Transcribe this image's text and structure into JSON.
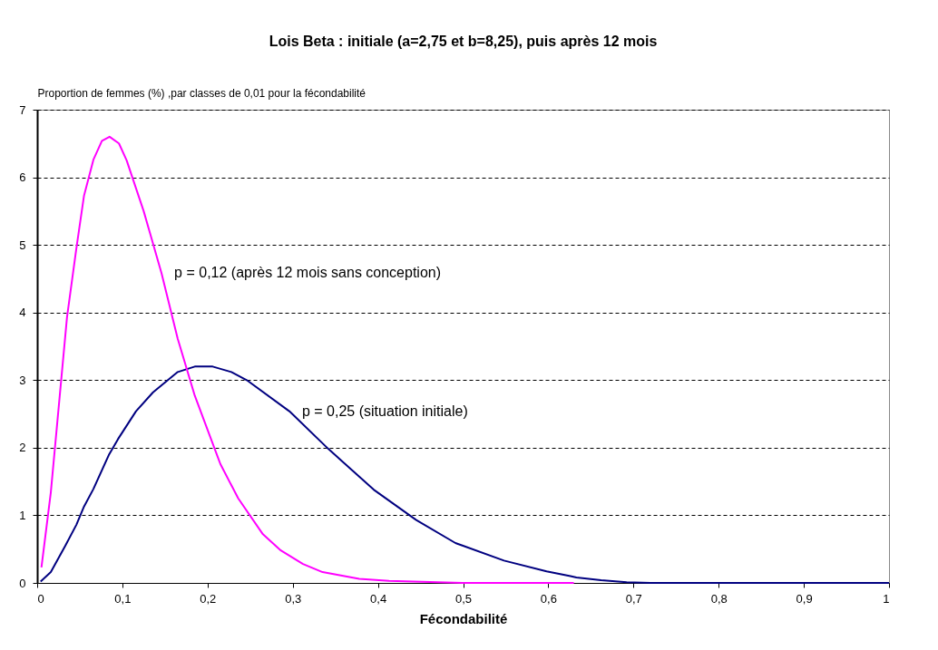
{
  "chart_data": {
    "type": "line",
    "title": "Lois Beta : initiale (a=2,75 et b=8,25), puis après 12 mois",
    "ylabel": "Proportion de  femmes (%) ,par classes de 0,01 pour la fécondabilité",
    "xlabel": "Fécondabilité",
    "series": [
      {
        "name": "p = 0,12 (après 12 mois sans conception)",
        "color": "#ff00ff",
        "x": [
          0.005,
          0.016,
          0.035,
          0.046,
          0.055,
          0.066,
          0.076,
          0.085,
          0.096,
          0.105,
          0.125,
          0.146,
          0.165,
          0.185,
          0.215,
          0.236,
          0.265,
          0.286,
          0.312,
          0.335,
          0.378,
          0.413,
          0.5,
          0.63
        ],
        "values": [
          0.23,
          1.34,
          3.93,
          4.95,
          5.73,
          6.26,
          6.54,
          6.6,
          6.5,
          6.25,
          5.5,
          4.58,
          3.61,
          2.77,
          1.76,
          1.25,
          0.72,
          0.48,
          0.28,
          0.16,
          0.06,
          0.03,
          0,
          0
        ]
      },
      {
        "name": "p = 0,25 (situation initiale)",
        "color": "#000080",
        "x": [
          0.004,
          0.016,
          0.033,
          0.046,
          0.055,
          0.066,
          0.084,
          0.095,
          0.116,
          0.136,
          0.165,
          0.185,
          0.206,
          0.228,
          0.246,
          0.296,
          0.342,
          0.395,
          0.445,
          0.491,
          0.548,
          0.598,
          0.626,
          0.633,
          0.662,
          0.692,
          0.72,
          0.8,
          0.91,
          1.0
        ],
        "values": [
          0.02,
          0.16,
          0.55,
          0.86,
          1.13,
          1.39,
          1.89,
          2.13,
          2.54,
          2.82,
          3.12,
          3.2,
          3.2,
          3.12,
          3.0,
          2.54,
          1.98,
          1.38,
          0.93,
          0.59,
          0.33,
          0.17,
          0.1,
          0.08,
          0.04,
          0.01,
          0,
          0,
          0,
          0
        ]
      }
    ],
    "xlim": [
      0,
      1
    ],
    "ylim": [
      0,
      7
    ],
    "xticks": [
      0,
      {
        "value": 0.1,
        "label": "0,1"
      },
      {
        "value": 0.2,
        "label": "0,2"
      },
      {
        "value": 0.3,
        "label": "0,3"
      },
      {
        "value": 0.4,
        "label": "0,4"
      },
      {
        "value": 0.5,
        "label": "0,5"
      },
      {
        "value": 0.6,
        "label": "0,6"
      },
      {
        "value": 0.7,
        "label": "0,7"
      },
      {
        "value": 0.8,
        "label": "0,8"
      },
      {
        "value": 0.9,
        "label": "0,9"
      },
      1
    ],
    "yticks": [
      0,
      1,
      2,
      3,
      4,
      5,
      6,
      7
    ],
    "grid": "y",
    "legend": false,
    "marker": "none",
    "line_style": "solid"
  }
}
